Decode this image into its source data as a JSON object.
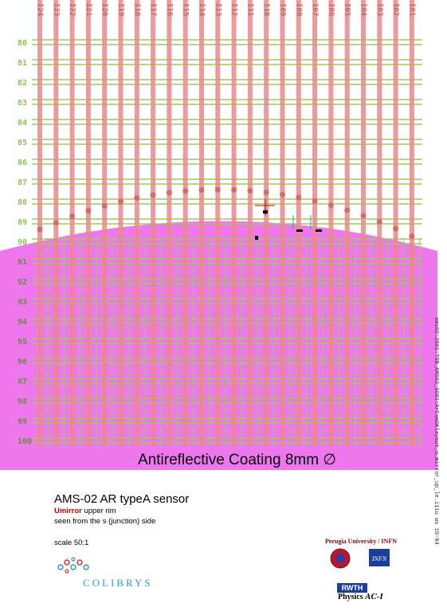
{
  "strip_labels": [
    "I24",
    "I23",
    "I22",
    "I21",
    "I20",
    "I19",
    "I18",
    "I17",
    "I16",
    "I15",
    "I14",
    "I13",
    "I12",
    "I11",
    "I10",
    "I09",
    "I08",
    "I07",
    "I06",
    "I05",
    "I04",
    "I03",
    "I02",
    "I01"
  ],
  "row_labels": [
    "80",
    "81",
    "82",
    "83",
    "84",
    "85",
    "86",
    "87",
    "88",
    "89",
    "90",
    "91",
    "92",
    "93",
    "94",
    "95",
    "96",
    "97",
    "98",
    "99",
    "100"
  ],
  "coating_label": "Antireflective Coating 8mm ∅",
  "sensor_title": "AMS-02 AR typeA sensor",
  "mirror_highlight": "Umirror",
  "mirror_rest": " upper rim",
  "view_text": "seen from the s (junction) side",
  "scale_text": "scale 50:1",
  "institution_1": "Perugia University / INFN",
  "institution_2_badge": "RWTH",
  "institution_2_text": "Physics ",
  "institution_2_italic": "AC-I",
  "side_filename": "ams02:2001:TSB_AMS02_1G01:ArCsmSKlayout_u_mirror_up_le.i11u   ws 10-04",
  "colors": {
    "coating": "#ee77ee",
    "grid": "#9acd5a",
    "strip": "#e88a8a",
    "text_label": "#8fbf5a"
  }
}
